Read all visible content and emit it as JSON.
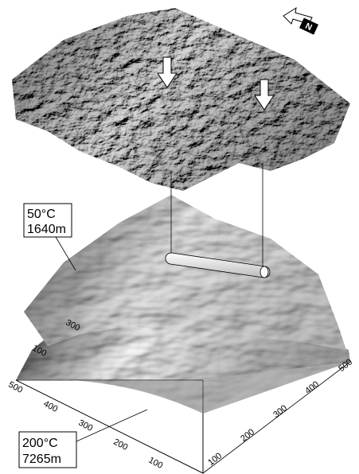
{
  "labels": {
    "upper": {
      "temperature": "50°C",
      "depth": "1640m"
    },
    "lower": {
      "temperature": "200°C",
      "depth": "7265m"
    }
  },
  "north": "N",
  "axes": {
    "left": [
      "500",
      "400",
      "300",
      "200",
      "100"
    ],
    "right": [
      "100",
      "200",
      "300",
      "400",
      "500"
    ],
    "middle": [
      "300",
      "100"
    ]
  }
}
